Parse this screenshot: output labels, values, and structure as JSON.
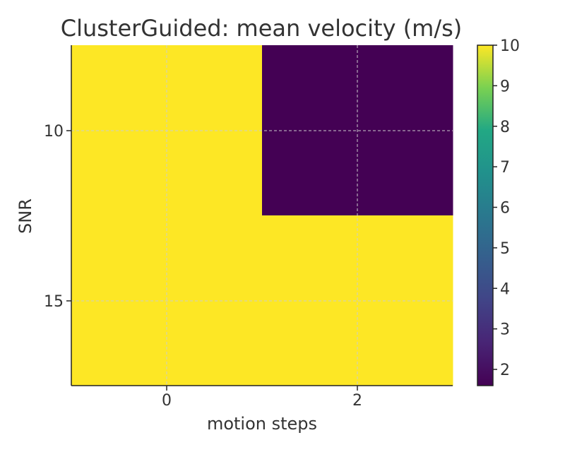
{
  "chart_data": {
    "type": "heatmap",
    "title": "ClusterGuided: mean velocity (m/s)",
    "xlabel": "motion steps",
    "ylabel": "SNR",
    "x_ticks": [
      "0",
      "2"
    ],
    "y_ticks": [
      "10",
      "15"
    ],
    "grid": true,
    "colormap": "viridis",
    "colorbar": {
      "min": 1.6,
      "max": 10,
      "ticks": [
        "2",
        "3",
        "4",
        "5",
        "6",
        "7",
        "8",
        "9",
        "10"
      ]
    },
    "cells": [
      {
        "row_snr": "10",
        "col_motion": "0",
        "value": 10
      },
      {
        "row_snr": "10",
        "col_motion": "2",
        "value": 1.6
      },
      {
        "row_snr": "15",
        "col_motion": "0",
        "value": 10
      },
      {
        "row_snr": "15",
        "col_motion": "2",
        "value": 10
      }
    ],
    "colors": {
      "high": "#fde725",
      "low": "#440154",
      "grid": "#cccccc",
      "axis": "#222222"
    }
  }
}
